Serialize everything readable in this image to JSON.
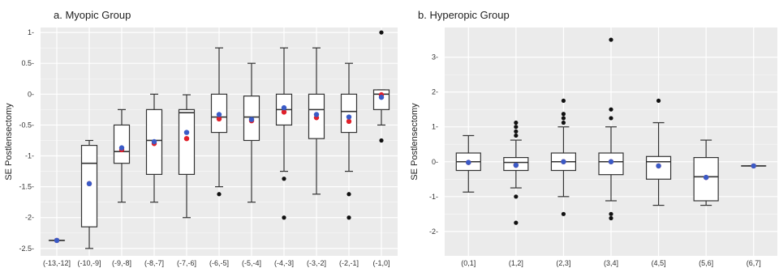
{
  "chart_data": [
    {
      "type": "box",
      "title": "a.  Myopic Group",
      "xlabel": "",
      "ylabel": "SE Postlensectomy",
      "ylim": [
        -2.62,
        1.08
      ],
      "yticks": [
        1,
        0.5,
        0,
        -0.5,
        -1,
        -1.5,
        -2,
        -2.5
      ],
      "ytick_labels": [
        "1-",
        "0.5-",
        "0-",
        "-0.5-",
        "-1-",
        "-1.5-",
        "-2-",
        "-2.5-"
      ],
      "grid": true,
      "background": "#ebebeb",
      "categories": [
        "(-13,-12]",
        "(-10,-9]",
        "(-9,-8]",
        "(-8,-7]",
        "(-7,-6]",
        "(-6,-5]",
        "(-5,-4]",
        "(-4,-3]",
        "(-3,-2]",
        "(-2,-1]",
        "(-1,0]"
      ],
      "boxes": [
        {
          "whisker_low": -2.37,
          "q1": -2.37,
          "median": -2.37,
          "q3": -2.37,
          "whisker_high": -2.37,
          "outliers": [],
          "red_mean": -2.37,
          "blue_mean": -2.37
        },
        {
          "whisker_low": -2.5,
          "q1": -2.15,
          "median": -1.12,
          "q3": -0.83,
          "whisker_high": -0.75,
          "outliers": [],
          "red_mean": -1.45,
          "blue_mean": -1.45
        },
        {
          "whisker_low": -1.75,
          "q1": -1.12,
          "median": -0.93,
          "q3": -0.5,
          "whisker_high": -0.25,
          "outliers": [],
          "red_mean": -0.9,
          "blue_mean": -0.87
        },
        {
          "whisker_low": -1.75,
          "q1": -1.3,
          "median": -0.75,
          "q3": -0.25,
          "whisker_high": 0.0,
          "outliers": [],
          "red_mean": -0.8,
          "blue_mean": -0.77
        },
        {
          "whisker_low": -2.0,
          "q1": -1.3,
          "median": -0.3,
          "q3": -0.25,
          "whisker_high": -0.01,
          "outliers": [],
          "red_mean": -0.72,
          "blue_mean": -0.62
        },
        {
          "whisker_low": -1.5,
          "q1": -0.62,
          "median": -0.37,
          "q3": 0.0,
          "whisker_high": 0.75,
          "outliers": [
            -1.62
          ],
          "red_mean": -0.4,
          "blue_mean": -0.33
        },
        {
          "whisker_low": -1.75,
          "q1": -0.75,
          "median": -0.37,
          "q3": -0.03,
          "whisker_high": 0.5,
          "outliers": [],
          "red_mean": -0.43,
          "blue_mean": -0.41
        },
        {
          "whisker_low": -1.25,
          "q1": -0.5,
          "median": -0.25,
          "q3": 0.0,
          "whisker_high": 0.75,
          "outliers": [
            -1.37,
            -2.0
          ],
          "red_mean": -0.29,
          "blue_mean": -0.22
        },
        {
          "whisker_low": -1.62,
          "q1": -0.72,
          "median": -0.25,
          "q3": 0.0,
          "whisker_high": 0.75,
          "outliers": [],
          "red_mean": -0.38,
          "blue_mean": -0.33
        },
        {
          "whisker_low": -1.25,
          "q1": -0.62,
          "median": -0.28,
          "q3": 0.0,
          "whisker_high": 0.5,
          "outliers": [
            -1.62,
            -2.0
          ],
          "red_mean": -0.44,
          "blue_mean": -0.37
        },
        {
          "whisker_low": -0.5,
          "q1": -0.25,
          "median": 0.0,
          "q3": 0.07,
          "whisker_high": 0.07,
          "outliers": [
            1.0,
            -0.75
          ],
          "red_mean": -0.01,
          "blue_mean": -0.05
        }
      ]
    },
    {
      "type": "box",
      "title": "b. Hyperopic Group",
      "xlabel": "",
      "ylabel": "SE Postlensectomy",
      "ylim": [
        -2.7,
        3.85
      ],
      "yticks": [
        3,
        2,
        1,
        0,
        -1,
        -2
      ],
      "ytick_labels": [
        "3-",
        "2-",
        "1-",
        "0-",
        "-1-",
        "-2-"
      ],
      "grid": true,
      "background": "#ebebeb",
      "categories": [
        "(0,1]",
        "(1,2]",
        "(2,3]",
        "(3,4]",
        "(4,5]",
        "(5,6]",
        "(6,7]"
      ],
      "boxes": [
        {
          "whisker_low": -0.87,
          "q1": -0.25,
          "median": 0.0,
          "q3": 0.25,
          "whisker_high": 0.75,
          "outliers": [],
          "red_mean": -0.02,
          "blue_mean": -0.02
        },
        {
          "whisker_low": -0.75,
          "q1": -0.25,
          "median": -0.02,
          "q3": 0.12,
          "whisker_high": 0.62,
          "outliers": [
            0.75,
            0.87,
            1.0,
            1.12,
            -1.0,
            -1.75
          ],
          "red_mean": -0.1,
          "blue_mean": -0.1
        },
        {
          "whisker_low": -1.0,
          "q1": -0.25,
          "median": 0.0,
          "q3": 0.25,
          "whisker_high": 1.0,
          "outliers": [
            1.12,
            1.25,
            1.37,
            1.75,
            -1.5
          ],
          "red_mean": 0.0,
          "blue_mean": 0.0
        },
        {
          "whisker_low": -1.12,
          "q1": -0.37,
          "median": 0.0,
          "q3": 0.25,
          "whisker_high": 1.0,
          "outliers": [
            1.25,
            1.5,
            3.5,
            -1.5,
            -1.62
          ],
          "red_mean": 0.0,
          "blue_mean": 0.0
        },
        {
          "whisker_low": -1.25,
          "q1": -0.5,
          "median": 0.0,
          "q3": 0.15,
          "whisker_high": 1.12,
          "outliers": [
            1.75
          ],
          "red_mean": -0.12,
          "blue_mean": -0.12
        },
        {
          "whisker_low": -1.25,
          "q1": -1.12,
          "median": -0.43,
          "q3": 0.12,
          "whisker_high": 0.62,
          "outliers": [],
          "red_mean": -0.45,
          "blue_mean": -0.45
        },
        {
          "whisker_low": -0.12,
          "q1": -0.12,
          "median": -0.12,
          "q3": -0.12,
          "whisker_high": -0.12,
          "outliers": [],
          "red_mean": -0.12,
          "blue_mean": -0.12
        }
      ]
    }
  ],
  "colors": {
    "panel_bg": "#ebebeb",
    "grid": "#ffffff",
    "box_fill": "#ffffff",
    "box_line": "#333333",
    "outlier": "#111111",
    "red_mean": "#e0202a",
    "blue_mean": "#3a5bc7"
  }
}
